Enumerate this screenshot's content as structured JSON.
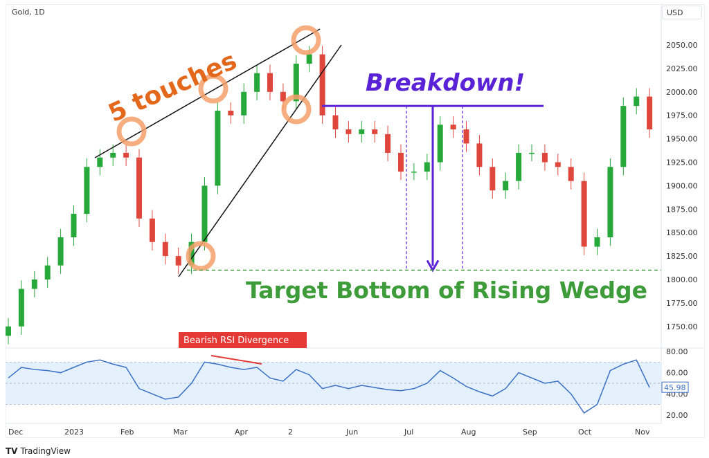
{
  "header": {
    "title": "Gold, 1D",
    "currency": "USD"
  },
  "branding": {
    "logo": "TradingView"
  },
  "annotations": {
    "touches_label": "5 touches",
    "breakdown_label": "Breakdown!",
    "target_label": "Target Bottom of Rising Wedge",
    "divergence_label": "Bearish RSI Divergence",
    "breakdown_level": 1985,
    "target_level": 1810,
    "colors": {
      "touches": "#e3681c",
      "touch_circle": "#f4a06a",
      "breakdown": "#5a22d6",
      "target": "#3d9c39",
      "divergence": "#e53935"
    }
  },
  "chart_data": [
    {
      "type": "candlestick",
      "title": "Gold, 1D",
      "ylabel": "USD",
      "ylim": [
        1735,
        2075
      ],
      "yticks": [
        "2050.00",
        "2025.00",
        "2000.00",
        "1975.00",
        "1950.00",
        "1925.00",
        "1900.00",
        "1875.00",
        "1850.00",
        "1825.00",
        "1800.00",
        "1775.00",
        "1750.00"
      ],
      "xticks": [
        "Dec",
        "2023",
        "Feb",
        "Mar",
        "Apr",
        "2",
        "Jun",
        "Jul",
        "Aug",
        "Sep",
        "Oct",
        "Nov"
      ],
      "grid": false,
      "colors": {
        "up": "#26a83a",
        "down": "#e0473c"
      },
      "close": [
        1750,
        1790,
        1800,
        1815,
        1845,
        1870,
        1920,
        1930,
        1935,
        1930,
        1865,
        1840,
        1825,
        1815,
        1840,
        1900,
        1980,
        1975,
        2000,
        2020,
        2000,
        1990,
        2030,
        2040,
        1975,
        1960,
        1955,
        1960,
        1955,
        1935,
        1915,
        1915,
        1925,
        1965,
        1960,
        1945,
        1920,
        1895,
        1905,
        1935,
        1935,
        1925,
        1920,
        1905,
        1835,
        1845,
        1920,
        1985,
        1995,
        1960
      ]
    },
    {
      "type": "line",
      "series": [
        {
          "name": "RSI",
          "values": [
            55,
            65,
            63,
            62,
            60,
            65,
            70,
            72,
            68,
            65,
            45,
            40,
            35,
            37,
            50,
            70,
            68,
            65,
            63,
            65,
            55,
            52,
            63,
            58,
            45,
            48,
            45,
            48,
            46,
            44,
            43,
            45,
            50,
            62,
            55,
            47,
            42,
            38,
            45,
            60,
            55,
            50,
            52,
            40,
            22,
            30,
            62,
            68,
            72,
            46
          ]
        }
      ],
      "ylim": [
        15,
        85
      ],
      "yticks": [
        "80.00",
        "60.00",
        "40.00",
        "20.00"
      ],
      "bands": [
        30,
        70
      ],
      "last_value": "45.98",
      "colors": {
        "line": "#3a6fc6",
        "band": "#e4f0fb"
      }
    }
  ]
}
